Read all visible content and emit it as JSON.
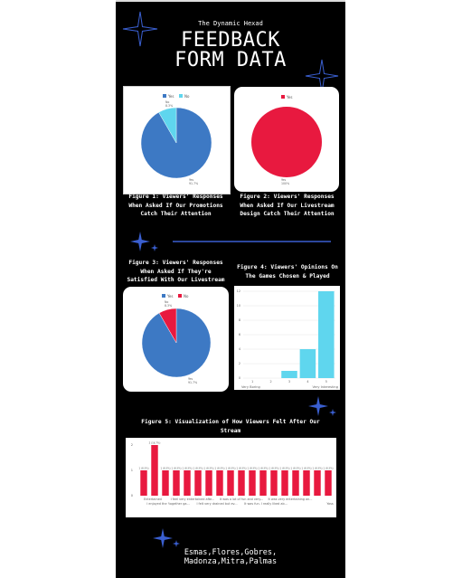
{
  "header": {
    "org": "The Dynamic Hexad",
    "title_line1": "FEEDBACK",
    "title_line2": "FORM DATA"
  },
  "captions": {
    "fig1": [
      "Figure 1: Viewers' Responses",
      "When Asked If Our Promotions",
      "Catch Their Attention"
    ],
    "fig2": [
      "Figure 2: Viewers' Responses",
      "When Asked If Our Livestream",
      "Design Catch Their Attention"
    ],
    "fig3": [
      "Figure 3: Viewers' Responses",
      "When Asked If They're",
      "Satisfied With Our Livestream"
    ],
    "fig4": [
      "Figure 4: Viewers' Opinions On",
      "The Games Chosen & Played"
    ],
    "fig5": [
      "Figure 5: Visualization of How Viewers Felt After Our",
      "Stream"
    ]
  },
  "footer": {
    "names_line1": "Esmas,Flores,Gobres,",
    "names_line2": "Madonza,Mitra,Palmas"
  },
  "colors": {
    "blue": "#3d79c4",
    "light_blue": "#5fd6ee",
    "red": "#e8193f",
    "background": "#000000",
    "accent_line": "#3a5fd0"
  },
  "chart_data": [
    {
      "id": "fig1",
      "type": "pie",
      "legend": [
        "Yes",
        "No"
      ],
      "values": [
        91.7,
        8.3
      ],
      "labels": [
        "Yes\n91.7%",
        "No\n8.3%"
      ],
      "colors": [
        "#3d79c4",
        "#5fd6ee"
      ],
      "legend_position": "top"
    },
    {
      "id": "fig2",
      "type": "pie",
      "legend": [
        "Yes"
      ],
      "values": [
        100
      ],
      "labels": [
        "Yes\n100%"
      ],
      "colors": [
        "#e8193f"
      ],
      "legend_position": "top"
    },
    {
      "id": "fig3",
      "type": "pie",
      "legend": [
        "Yes",
        "No"
      ],
      "values": [
        91.7,
        8.3
      ],
      "labels": [
        "Yes\n91.7%",
        "No\n8.3%"
      ],
      "colors": [
        "#3d79c4",
        "#e8193f"
      ],
      "legend_position": "top"
    },
    {
      "id": "fig4",
      "type": "bar",
      "categories": [
        "1",
        "2",
        "3",
        "4",
        "5"
      ],
      "values": [
        0,
        0,
        1,
        4,
        12
      ],
      "ylim": [
        0,
        12
      ],
      "yticks": [
        0,
        2,
        4,
        6,
        8,
        10,
        12
      ],
      "scale_labels": [
        "Very Boring",
        "Very Interesting"
      ],
      "color": "#5fd6ee",
      "grid": true
    },
    {
      "id": "fig5",
      "type": "bar",
      "categories": [
        "Entertained",
        "I enjoyed the 'together ga...",
        "I feel very entertained afte...",
        "I felt very drained but ev...",
        "It was a lot of fun and very...",
        "It was fun. I really liked ab...",
        "It was very entertaining an...",
        "Yass",
        "",
        "",
        "",
        "",
        "",
        "",
        "",
        "",
        "",
        ""
      ],
      "values": [
        1,
        2,
        1,
        1,
        1,
        1,
        1,
        1,
        1,
        1,
        1,
        1,
        1,
        1,
        1,
        1,
        1,
        1
      ],
      "data_labels": [
        "1 (8.3%)",
        "2 (16.7%)",
        "1 (8.3%)",
        "1 (8.3%)",
        "1 (8.3%)",
        "1 (8.3%)",
        "1 (8.3%)",
        "1 (8.3%)",
        "1 (8.3%)",
        "1 (8.3%)",
        "1 (8.3%)",
        "1 (8.3%)",
        "1 (8.3%)",
        "1 (8.3%)",
        "1 (8.3%)",
        "1 (8.3%)",
        "1 (8.3%)",
        "1 (8.3%)"
      ],
      "ylim": [
        0,
        2
      ],
      "yticks": [
        0,
        1,
        2
      ],
      "color": "#e8193f",
      "grid": false
    }
  ]
}
